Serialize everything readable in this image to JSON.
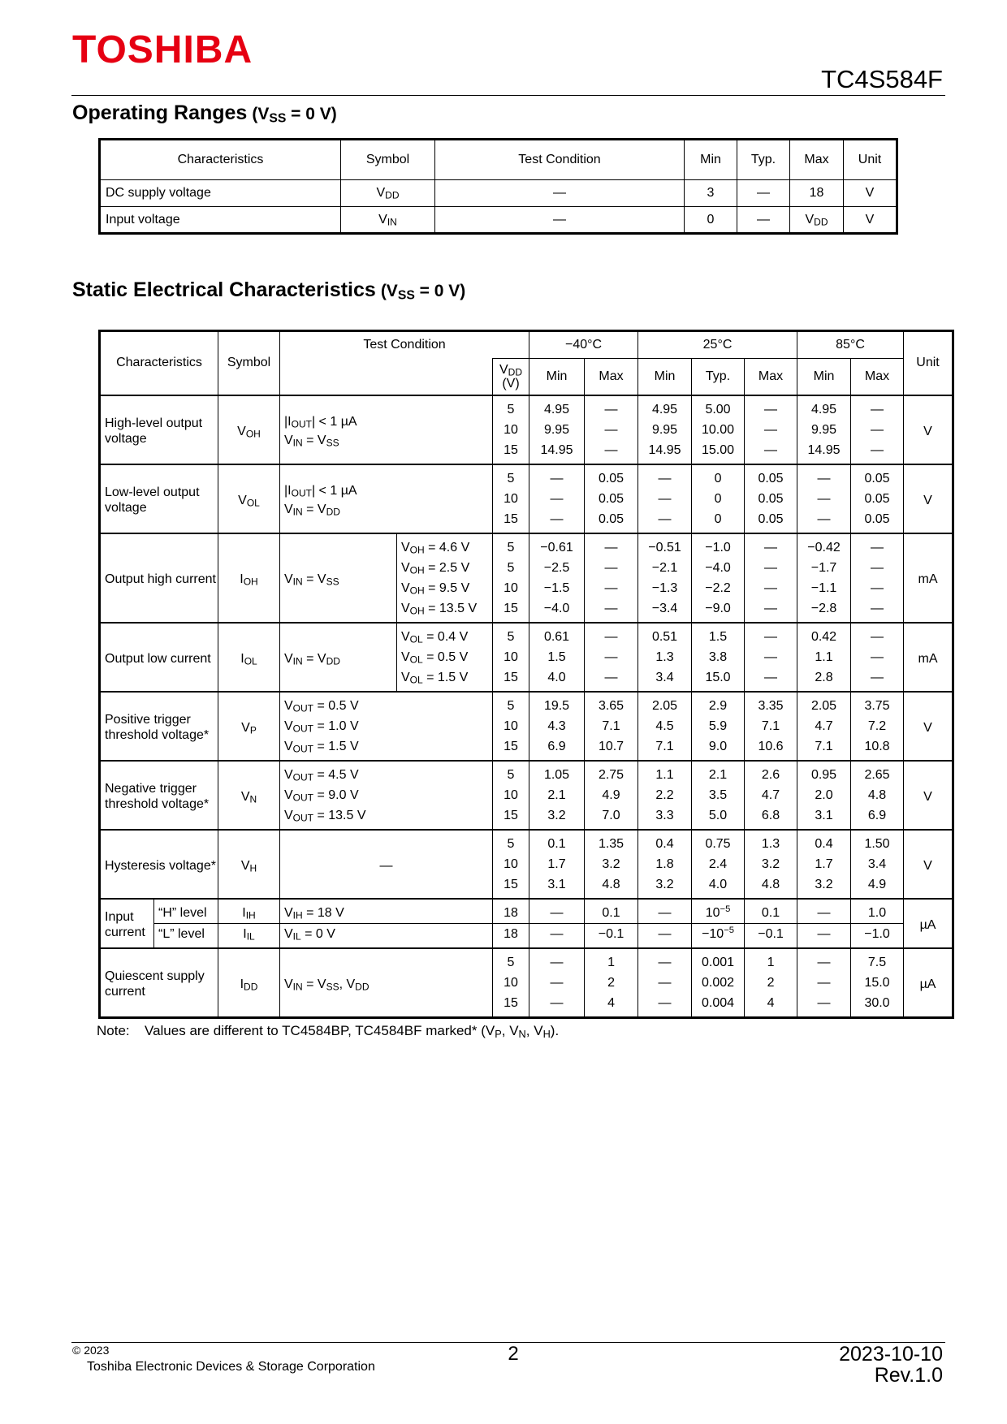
{
  "header": {
    "logo": "TOSHIBA",
    "part": "TC4S584F"
  },
  "operating": {
    "title": "Operating Ranges",
    "title_cond": [
      "(V",
      {
        "sub": "SS"
      },
      " = 0 V)"
    ],
    "columns": [
      "Characteristics",
      "Symbol",
      "Test Condition",
      "Min",
      "Typ.",
      "Max",
      "Unit"
    ],
    "rows": [
      [
        "DC supply voltage",
        [
          "V",
          {
            "sub": "DD"
          }
        ],
        "—",
        "3",
        "—",
        "18",
        "V"
      ],
      [
        "Input voltage",
        [
          "V",
          {
            "sub": "IN"
          }
        ],
        "—",
        "0",
        "—",
        [
          "V",
          {
            "sub": "DD"
          }
        ],
        "V"
      ]
    ]
  },
  "static": {
    "title": "Static Electrical Characteristics",
    "title_cond": [
      "(V",
      {
        "sub": "SS"
      },
      " = 0 V)"
    ],
    "headers": {
      "characteristics": "Characteristics",
      "symbol": "Symbol",
      "condition": "Test Condition",
      "vdd": [
        "V",
        {
          "sub": "DD"
        }
      ],
      "vdd_unit": "(V)",
      "temps": [
        {
          "label": "−40°C",
          "columns": [
            "Min",
            "Max"
          ]
        },
        {
          "label": "25°C",
          "columns": [
            "Min",
            "Typ.",
            "Max"
          ]
        },
        {
          "label": "85°C",
          "columns": [
            "Min",
            "Max"
          ]
        }
      ],
      "unit": "Unit"
    },
    "groups": [
      {
        "characteristic": "High-level output voltage",
        "symbol": [
          "V",
          {
            "sub": "OH"
          }
        ],
        "condition": [
          [
            "|I",
            {
              "sub": "OUT"
            },
            "| < 1 µA"
          ],
          [
            "V",
            {
              "sub": "IN"
            },
            " = V",
            {
              "sub": "SS"
            }
          ]
        ],
        "rows": [
          {
            "vdd": "5",
            "values": [
              "4.95",
              "—",
              "4.95",
              "5.00",
              "—",
              "4.95",
              "—"
            ]
          },
          {
            "vdd": "10",
            "values": [
              "9.95",
              "—",
              "9.95",
              "10.00",
              "—",
              "9.95",
              "—"
            ]
          },
          {
            "vdd": "15",
            "values": [
              "14.95",
              "—",
              "14.95",
              "15.00",
              "—",
              "14.95",
              "—"
            ]
          }
        ],
        "unit": "V"
      },
      {
        "characteristic": "Low-level output voltage",
        "symbol": [
          "V",
          {
            "sub": "OL"
          }
        ],
        "condition": [
          [
            "|I",
            {
              "sub": "OUT"
            },
            "| < 1 µA"
          ],
          [
            "V",
            {
              "sub": "IN"
            },
            " = V",
            {
              "sub": "DD"
            }
          ]
        ],
        "rows": [
          {
            "vdd": "5",
            "values": [
              "—",
              "0.05",
              "—",
              "0",
              "0.05",
              "—",
              "0.05"
            ]
          },
          {
            "vdd": "10",
            "values": [
              "—",
              "0.05",
              "—",
              "0",
              "0.05",
              "—",
              "0.05"
            ]
          },
          {
            "vdd": "15",
            "values": [
              "—",
              "0.05",
              "—",
              "0",
              "0.05",
              "—",
              "0.05"
            ]
          }
        ],
        "unit": "V"
      },
      {
        "characteristic": "Output high current",
        "symbol": [
          "I",
          {
            "sub": "OH"
          }
        ],
        "condition": [
          [
            "V",
            {
              "sub": "IN"
            },
            " = V",
            {
              "sub": "SS"
            }
          ]
        ],
        "rows": [
          {
            "condition": [
              "V",
              {
                "sub": "OH"
              },
              " = 4.6 V"
            ],
            "vdd": "5",
            "values": [
              "−0.61",
              "—",
              "−0.51",
              "−1.0",
              "—",
              "−0.42",
              "—"
            ]
          },
          {
            "condition": [
              "V",
              {
                "sub": "OH"
              },
              " = 2.5 V"
            ],
            "vdd": "5",
            "values": [
              "−2.5",
              "—",
              "−2.1",
              "−4.0",
              "—",
              "−1.7",
              "—"
            ]
          },
          {
            "condition": [
              "V",
              {
                "sub": "OH"
              },
              " = 9.5 V"
            ],
            "vdd": "10",
            "values": [
              "−1.5",
              "—",
              "−1.3",
              "−2.2",
              "—",
              "−1.1",
              "—"
            ]
          },
          {
            "condition": [
              "V",
              {
                "sub": "OH"
              },
              " = 13.5 V"
            ],
            "vdd": "15",
            "values": [
              "−4.0",
              "—",
              "−3.4",
              "−9.0",
              "—",
              "−2.8",
              "—"
            ]
          }
        ],
        "unit": "mA"
      },
      {
        "characteristic": "Output low current",
        "symbol": [
          "I",
          {
            "sub": "OL"
          }
        ],
        "condition": [
          [
            "V",
            {
              "sub": "IN"
            },
            " = V",
            {
              "sub": "DD"
            }
          ]
        ],
        "rows": [
          {
            "condition": [
              "V",
              {
                "sub": "OL"
              },
              " = 0.4 V"
            ],
            "vdd": "5",
            "values": [
              "0.61",
              "—",
              "0.51",
              "1.5",
              "—",
              "0.42",
              "—"
            ]
          },
          {
            "condition": [
              "V",
              {
                "sub": "OL"
              },
              " = 0.5 V"
            ],
            "vdd": "10",
            "values": [
              "1.5",
              "—",
              "1.3",
              "3.8",
              "—",
              "1.1",
              "—"
            ]
          },
          {
            "condition": [
              "V",
              {
                "sub": "OL"
              },
              " = 1.5 V"
            ],
            "vdd": "15",
            "values": [
              "4.0",
              "—",
              "3.4",
              "15.0",
              "—",
              "2.8",
              "—"
            ]
          }
        ],
        "unit": "mA"
      },
      {
        "characteristic": "Positive trigger threshold voltage*",
        "symbol": [
          "V",
          {
            "sub": "P"
          }
        ],
        "rows": [
          {
            "condition": [
              "V",
              {
                "sub": "OUT"
              },
              " = 0.5 V"
            ],
            "vdd": "5",
            "values": [
              "19.5",
              "3.65",
              "2.05",
              "2.9",
              "3.35",
              "2.05",
              "3.75"
            ]
          },
          {
            "condition": [
              "V",
              {
                "sub": "OUT"
              },
              " = 1.0 V"
            ],
            "vdd": "10",
            "values": [
              "4.3",
              "7.1",
              "4.5",
              "5.9",
              "7.1",
              "4.7",
              "7.2"
            ]
          },
          {
            "condition": [
              "V",
              {
                "sub": "OUT"
              },
              " = 1.5 V"
            ],
            "vdd": "15",
            "values": [
              "6.9",
              "10.7",
              "7.1",
              "9.0",
              "10.6",
              "7.1",
              "10.8"
            ]
          }
        ],
        "unit": "V"
      },
      {
        "characteristic": "Negative trigger threshold voltage*",
        "symbol": [
          "V",
          {
            "sub": "N"
          }
        ],
        "rows": [
          {
            "condition": [
              "V",
              {
                "sub": "OUT"
              },
              " = 4.5 V"
            ],
            "vdd": "5",
            "values": [
              "1.05",
              "2.75",
              "1.1",
              "2.1",
              "2.6",
              "0.95",
              "2.65"
            ]
          },
          {
            "condition": [
              "V",
              {
                "sub": "OUT"
              },
              " = 9.0 V"
            ],
            "vdd": "10",
            "values": [
              "2.1",
              "4.9",
              "2.2",
              "3.5",
              "4.7",
              "2.0",
              "4.8"
            ]
          },
          {
            "condition": [
              "V",
              {
                "sub": "OUT"
              },
              " = 13.5 V"
            ],
            "vdd": "15",
            "values": [
              "3.2",
              "7.0",
              "3.3",
              "5.0",
              "6.8",
              "3.1",
              "6.9"
            ]
          }
        ],
        "unit": "V"
      },
      {
        "characteristic": "Hysteresis voltage*",
        "symbol": [
          "V",
          {
            "sub": "H"
          }
        ],
        "condition": [
          "—"
        ],
        "rows": [
          {
            "vdd": "5",
            "values": [
              "0.1",
              "1.35",
              "0.4",
              "0.75",
              "1.3",
              "0.4",
              "1.50"
            ]
          },
          {
            "vdd": "10",
            "values": [
              "1.7",
              "3.2",
              "1.8",
              "2.4",
              "3.2",
              "1.7",
              "3.4"
            ]
          },
          {
            "vdd": "15",
            "values": [
              "3.1",
              "4.8",
              "3.2",
              "4.0",
              "4.8",
              "3.2",
              "4.9"
            ]
          }
        ],
        "unit": "V"
      },
      {
        "characteristic": "Input current",
        "rows": [
          {
            "level": "“H” level",
            "symbol": [
              "I",
              {
                "sub": "IH"
              }
            ],
            "condition": [
              "V",
              {
                "sub": "IH"
              },
              " = 18 V"
            ],
            "vdd": "18",
            "values": [
              "—",
              "0.1",
              "—",
              [
                "10",
                {
                  "sup": "−5"
                }
              ],
              "0.1",
              "—",
              "1.0"
            ]
          },
          {
            "level": "“L” level",
            "symbol": [
              "I",
              {
                "sub": "IL"
              }
            ],
            "condition": [
              "V",
              {
                "sub": "IL"
              },
              " = 0 V"
            ],
            "vdd": "18",
            "values": [
              "—",
              "−0.1",
              "—",
              [
                "−10",
                {
                  "sup": "−5"
                }
              ],
              "−0.1",
              "—",
              "−1.0"
            ]
          }
        ],
        "unit": "µA"
      },
      {
        "characteristic": "Quiescent supply current",
        "symbol": [
          "I",
          {
            "sub": "DD"
          }
        ],
        "condition": [
          [
            "V",
            {
              "sub": "IN"
            },
            " = V",
            {
              "sub": "SS"
            },
            ", V",
            {
              "sub": "DD"
            }
          ]
        ],
        "rows": [
          {
            "vdd": "5",
            "values": [
              "—",
              "1",
              "—",
              "0.001",
              "1",
              "—",
              "7.5"
            ]
          },
          {
            "vdd": "10",
            "values": [
              "—",
              "2",
              "—",
              "0.002",
              "2",
              "—",
              "15.0"
            ]
          },
          {
            "vdd": "15",
            "values": [
              "—",
              "4",
              "—",
              "0.004",
              "4",
              "—",
              "30.0"
            ]
          }
        ],
        "unit": "µA"
      }
    ]
  },
  "note": {
    "label": "Note:",
    "text": [
      "Values are different to TC4584BP, TC4584BF marked* (V",
      {
        "sub": "P"
      },
      ", V",
      {
        "sub": "N"
      },
      ", V",
      {
        "sub": "H"
      },
      ")."
    ]
  },
  "footer": {
    "copyright": "© 2023",
    "company": "Toshiba Electronic Devices & Storage Corporation",
    "page": "2",
    "date": "2023-10-10",
    "rev": "Rev.1.0"
  }
}
